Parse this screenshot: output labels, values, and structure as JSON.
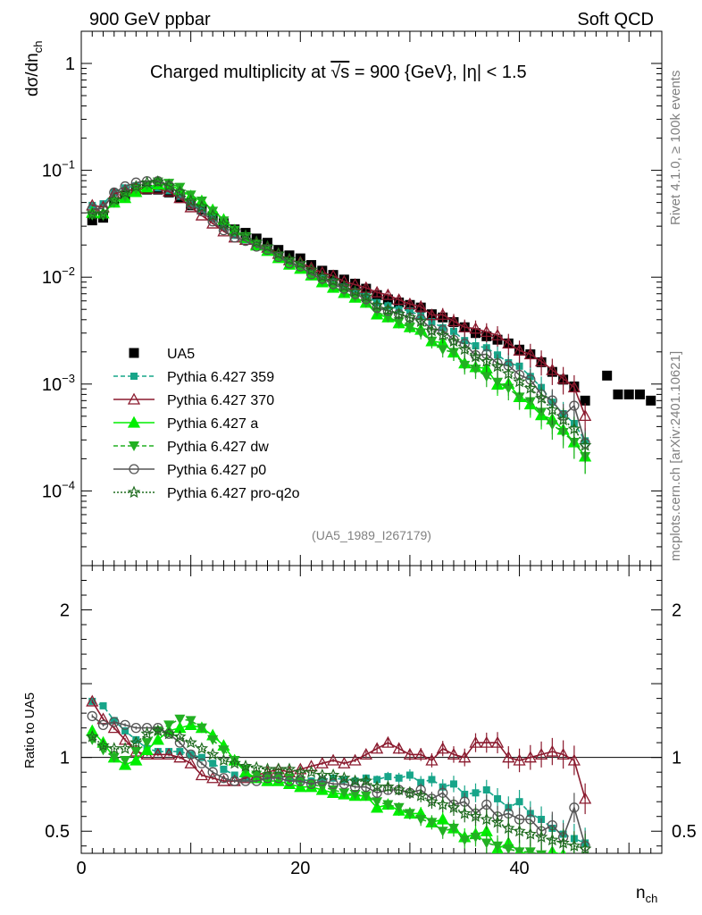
{
  "header": {
    "left": "900 GeV ppbar",
    "right": "Soft QCD",
    "title_pre": "Charged multiplicity at ",
    "title_sqrt": "√s",
    "title_post": " = 900 {GeV}, |η| < 1.5"
  },
  "side_labels": {
    "rivet": "Rivet 4.1.0, ≥ 100k events",
    "mcplots": "mcplots.cern.ch [arXiv:2401.10621]"
  },
  "analysis_tag": "(UA5_1989_I267179)",
  "chart_data": {
    "type": "scatter",
    "title": "Charged multiplicity at √s = 900 {GeV}, |η| < 1.5",
    "xlabel": "n",
    "xlabel_sub": "ch",
    "ylabel": "dσ/dn",
    "ylabel_sub": "ch",
    "ratio_ylabel": "Ratio to UA5",
    "xlim": [
      0,
      53
    ],
    "ylim": [
      2e-05,
      2
    ],
    "ratio_ylim": [
      0.35,
      2.3
    ],
    "yscale": "log",
    "legend_position": "middle-left",
    "x_ticks": [
      "0",
      "20",
      "40"
    ],
    "y_ticks": [
      {
        "base": "1",
        "exp": ""
      },
      {
        "base": "10",
        "exp": "−1"
      },
      {
        "base": "10",
        "exp": "−2"
      },
      {
        "base": "10",
        "exp": "−3"
      },
      {
        "base": "10",
        "exp": "−4"
      }
    ],
    "ratio_ticks": [
      "2",
      "1",
      "0.5"
    ],
    "reference": {
      "name": "UA5",
      "color": "#000000",
      "x": [
        1,
        2,
        3,
        4,
        5,
        6,
        7,
        8,
        9,
        10,
        11,
        12,
        13,
        14,
        15,
        16,
        17,
        18,
        19,
        20,
        21,
        22,
        23,
        24,
        25,
        26,
        27,
        28,
        29,
        30,
        31,
        32,
        33,
        34,
        35,
        36,
        37,
        38,
        39,
        40,
        41,
        42,
        43,
        44,
        45,
        46,
        48,
        49,
        50,
        51,
        52
      ],
      "values": [
        0.034,
        0.036,
        0.05,
        0.058,
        0.064,
        0.066,
        0.066,
        0.062,
        0.055,
        0.047,
        0.043,
        0.037,
        0.032,
        0.028,
        0.026,
        0.023,
        0.021,
        0.018,
        0.016,
        0.015,
        0.013,
        0.0115,
        0.0105,
        0.0095,
        0.0087,
        0.0078,
        0.0068,
        0.0062,
        0.0058,
        0.0055,
        0.0052,
        0.0045,
        0.0042,
        0.0038,
        0.0034,
        0.003,
        0.0028,
        0.0026,
        0.0024,
        0.0021,
        0.0019,
        0.0016,
        0.0013,
        0.0011,
        0.00095,
        0.0007,
        0.0012,
        0.0008,
        0.0008,
        0.0008,
        0.0007
      ]
    },
    "series": [
      {
        "name": "Pythia 6.427 359",
        "color": "#17a589",
        "marker": "square",
        "dash": "5,3",
        "ratio": [
          1.38,
          1.35,
          1.25,
          1.18,
          1.12,
          1.06,
          1.04,
          1.04,
          1.04,
          1.02,
          1.0,
          0.96,
          0.92,
          0.88,
          0.86,
          0.85,
          0.86,
          0.88,
          0.86,
          0.85,
          0.84,
          0.85,
          0.86,
          0.85,
          0.84,
          0.86,
          0.85,
          0.87,
          0.86,
          0.88,
          0.83,
          0.85,
          0.8,
          0.82,
          0.75,
          0.76,
          0.78,
          0.72,
          0.66,
          0.7,
          0.62,
          0.58,
          0.52,
          0.48,
          0.45,
          0.42
        ]
      },
      {
        "name": "Pythia 6.427 370",
        "color": "#8b1a2e",
        "marker": "triangle-open",
        "dash": "",
        "ratio": [
          1.38,
          1.26,
          1.2,
          1.12,
          1.04,
          1.02,
          1.02,
          1.02,
          1.0,
          0.96,
          0.88,
          0.86,
          0.84,
          0.84,
          0.86,
          0.88,
          0.9,
          0.92,
          0.9,
          0.92,
          0.94,
          0.96,
          0.98,
          0.96,
          0.98,
          1.02,
          1.06,
          1.1,
          1.06,
          1.02,
          1.02,
          0.98,
          1.06,
          1.02,
          1.0,
          1.1,
          1.1,
          1.1,
          1.0,
          0.98,
          1.0,
          1.02,
          1.04,
          1.02,
          0.98,
          0.72,
          0.7
        ]
      },
      {
        "name": "Pythia 6.427 a",
        "color": "#00ee00",
        "marker": "triangle",
        "dash": "",
        "ratio": [
          1.18,
          1.1,
          1.0,
          0.95,
          0.98,
          1.05,
          1.12,
          1.18,
          1.2,
          1.22,
          1.2,
          1.15,
          1.08,
          0.98,
          0.9,
          0.86,
          0.84,
          0.84,
          0.82,
          0.8,
          0.8,
          0.78,
          0.76,
          0.75,
          0.74,
          0.74,
          0.66,
          0.68,
          0.64,
          0.62,
          0.62,
          0.56,
          0.58,
          0.52,
          0.46,
          0.48,
          0.5,
          0.38,
          0.42,
          0.36,
          0.34,
          0.32,
          0.36,
          0.34,
          0.3,
          0.3
        ]
      },
      {
        "name": "Pythia 6.427 dw",
        "color": "#22b022",
        "marker": "triangle-down",
        "dash": "5,3",
        "ratio": [
          1.12,
          1.05,
          1.0,
          0.98,
          1.04,
          1.1,
          1.18,
          1.22,
          1.26,
          1.25,
          1.2,
          1.12,
          1.05,
          0.98,
          0.92,
          0.88,
          0.87,
          0.87,
          0.86,
          0.84,
          0.82,
          0.8,
          0.78,
          0.76,
          0.75,
          0.74,
          0.7,
          0.68,
          0.66,
          0.62,
          0.58,
          0.56,
          0.5,
          0.52,
          0.44,
          0.46,
          0.42,
          0.4,
          0.38,
          0.36,
          0.36,
          0.34,
          0.32,
          0.32,
          0.3,
          0.3
        ]
      },
      {
        "name": "Pythia 6.427 p0",
        "color": "#555555",
        "marker": "circle-open",
        "dash": "",
        "ratio": [
          1.28,
          1.22,
          1.24,
          1.22,
          1.2,
          1.2,
          1.2,
          1.16,
          1.1,
          1.02,
          0.96,
          0.9,
          0.86,
          0.84,
          0.84,
          0.84,
          0.86,
          0.86,
          0.84,
          0.84,
          0.82,
          0.84,
          0.82,
          0.82,
          0.8,
          0.8,
          0.76,
          0.78,
          0.78,
          0.76,
          0.78,
          0.72,
          0.76,
          0.68,
          0.7,
          0.62,
          0.68,
          0.6,
          0.62,
          0.58,
          0.58,
          0.5,
          0.54,
          0.46,
          0.66,
          0.4
        ]
      },
      {
        "name": "Pythia 6.427 pro-q2o",
        "color": "#1e6b1e",
        "marker": "star-open",
        "dash": "2,2",
        "ratio": [
          1.14,
          1.08,
          1.06,
          1.06,
          1.1,
          1.16,
          1.18,
          1.16,
          1.14,
          1.1,
          1.06,
          1.02,
          0.98,
          0.96,
          0.94,
          0.93,
          0.92,
          0.92,
          0.92,
          0.9,
          0.9,
          0.88,
          0.88,
          0.86,
          0.84,
          0.84,
          0.8,
          0.8,
          0.78,
          0.76,
          0.74,
          0.7,
          0.68,
          0.66,
          0.62,
          0.6,
          0.58,
          0.56,
          0.52,
          0.5,
          0.48,
          0.46,
          0.44,
          0.42,
          0.4,
          0.38
        ]
      }
    ]
  }
}
